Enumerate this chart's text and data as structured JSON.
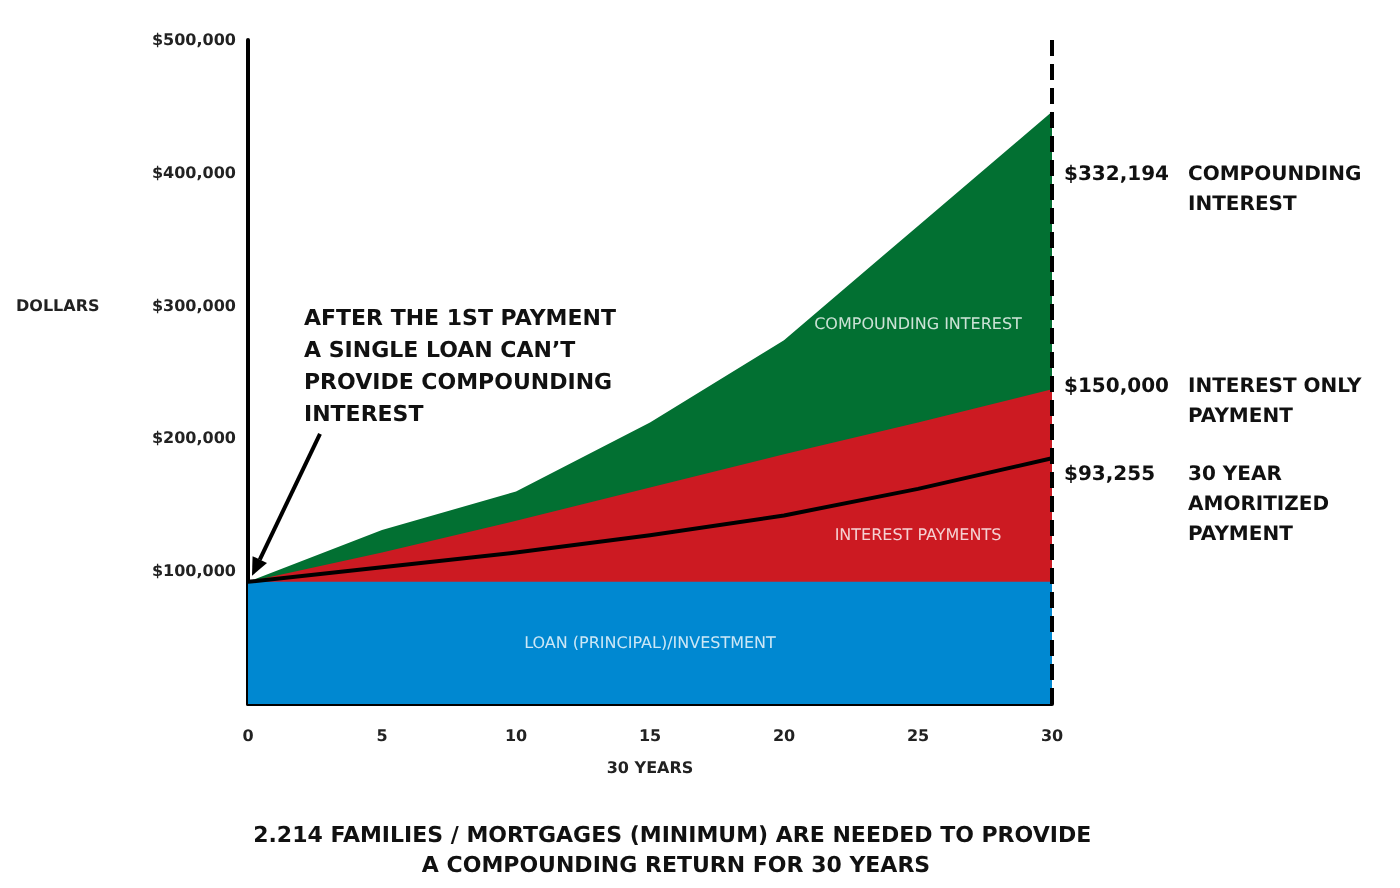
{
  "chart_data": {
    "type": "area",
    "stacked": true,
    "marker": "none",
    "xlabel": "30 YEARS",
    "ylabel": "DOLLARS",
    "x": [
      0,
      5,
      10,
      15,
      20,
      25,
      30
    ],
    "xlim": [
      0,
      30
    ],
    "xticks": [
      0,
      5,
      10,
      15,
      20,
      25,
      30
    ],
    "ylim": [
      0,
      500000
    ],
    "yticks": [
      {
        "value": 100000,
        "label": "$100,000"
      },
      {
        "value": 200000,
        "label": "$200,000"
      },
      {
        "value": 300000,
        "label": "$300,000"
      },
      {
        "value": 400000,
        "label": "$400,000"
      },
      {
        "value": 500000,
        "label": "$500,000"
      }
    ],
    "series": [
      {
        "name": "LOAN (PRINCIPAL)/INVESTMENT",
        "color": "#0088d1",
        "values": [
          92000,
          92000,
          92000,
          92000,
          92000,
          92000,
          92000
        ]
      },
      {
        "name": "INTEREST PAYMENTS",
        "color": "#cc1a22",
        "values": [
          0,
          22000,
          46000,
          71000,
          96000,
          120000,
          145000
        ]
      },
      {
        "name": "COMPOUNDING INTEREST",
        "color": "#027032",
        "values": [
          0,
          17000,
          22000,
          49000,
          86000,
          148000,
          209000
        ]
      },
      {
        "type": "line",
        "color": "#000000",
        "values": [
          92000,
          103000,
          114000,
          127000,
          142000,
          162000,
          185000
        ]
      }
    ],
    "ref_lines": [
      {
        "axis": "x",
        "value": 30,
        "color": "#000000",
        "line_style": "dashed"
      }
    ],
    "annotations": [
      "AFTER THE 1ST PAYMENT A SINGLE LOAN CAN’T PROVIDE COMPOUNDING INTEREST",
      "$332,194",
      "COMPOUNDING INTEREST",
      "$150,000",
      "INTEREST ONLY PAYMENT",
      "$93,255",
      "30 YEAR AMORITIZED PAYMENT",
      "2.214 FAMILIES / MORTGAGES (MINIMUM) ARE NEEDED TO PROVIDE A COMPOUNDING RETURN FOR 30 YEARS"
    ]
  }
}
